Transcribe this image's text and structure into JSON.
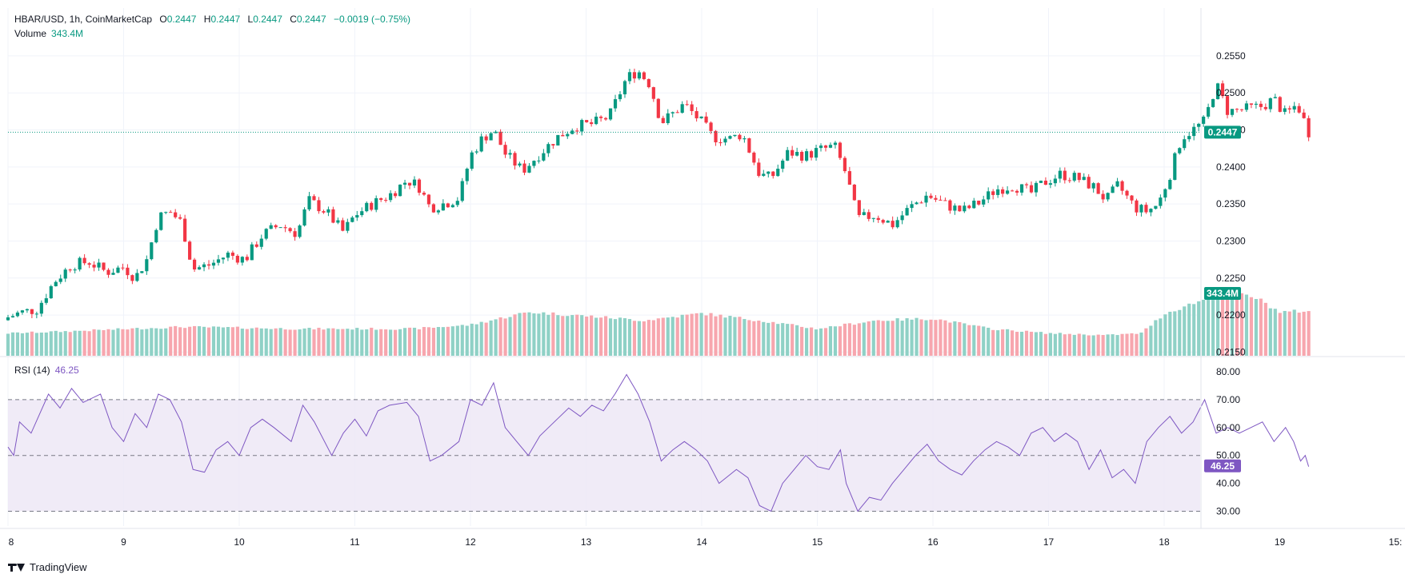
{
  "header": {
    "symbol": "HBAR/USD, 1h, CoinMarketCap",
    "open_label": "O",
    "open": "0.2447",
    "high_label": "H",
    "high": "0.2447",
    "low_label": "L",
    "low": "0.2447",
    "close_label": "C",
    "close": "0.2447",
    "change": "−0.0019 (−0.75%)",
    "volume_label": "Volume",
    "volume": "343.4M"
  },
  "rsi": {
    "label": "RSI (14)",
    "value": "46.25"
  },
  "brand": {
    "name": "TradingView"
  },
  "colors": {
    "up": "#089981",
    "down": "#f23645",
    "up_vol": "#8fd1c6",
    "down_vol": "#f7a6ae",
    "rsi_line": "#7e57c2",
    "rsi_band": "#ede7f6",
    "price_badge": "#089981",
    "rsi_badge": "#7e57c2"
  },
  "chart_data": [
    {
      "type": "candlestick",
      "title": "HBAR/USD, 1h, CoinMarketCap",
      "x_tick_labels": [
        "8",
        "9",
        "10",
        "11",
        "12",
        "13",
        "14",
        "15",
        "16",
        "17",
        "18",
        "19",
        "15:"
      ],
      "y_tick_labels": [
        "0.2550",
        "0.2500",
        "0.2450",
        "0.2400",
        "0.2350",
        "0.2300",
        "0.2250",
        "0.2200",
        "0.2150"
      ],
      "ylim": [
        0.2145,
        0.2578
      ],
      "current_price": 0.2447,
      "current_price_label": "0.2447",
      "volume_badge": "343.4M",
      "close_path": [
        [
          8.0,
          0.2197
        ],
        [
          8.1,
          0.2203
        ],
        [
          8.25,
          0.2208
        ],
        [
          8.4,
          0.2245
        ],
        [
          8.55,
          0.2268
        ],
        [
          8.7,
          0.2272
        ],
        [
          8.85,
          0.2258
        ],
        [
          9.0,
          0.2265
        ],
        [
          9.1,
          0.225
        ],
        [
          9.2,
          0.2275
        ],
        [
          9.3,
          0.2332
        ],
        [
          9.4,
          0.234
        ],
        [
          9.5,
          0.2325
        ],
        [
          9.6,
          0.2262
        ],
        [
          9.75,
          0.2268
        ],
        [
          9.9,
          0.2282
        ],
        [
          10.05,
          0.2275
        ],
        [
          10.2,
          0.2308
        ],
        [
          10.35,
          0.2322
        ],
        [
          10.5,
          0.231
        ],
        [
          10.6,
          0.2355
        ],
        [
          10.75,
          0.234
        ],
        [
          10.9,
          0.2312
        ],
        [
          11.0,
          0.2335
        ],
        [
          11.15,
          0.235
        ],
        [
          11.3,
          0.2362
        ],
        [
          11.45,
          0.2382
        ],
        [
          11.55,
          0.2375
        ],
        [
          11.65,
          0.2345
        ],
        [
          11.8,
          0.2352
        ],
        [
          11.9,
          0.2358
        ],
        [
          12.0,
          0.2415
        ],
        [
          12.1,
          0.2438
        ],
        [
          12.2,
          0.245
        ],
        [
          12.3,
          0.2418
        ],
        [
          12.45,
          0.2395
        ],
        [
          12.6,
          0.2418
        ],
        [
          12.75,
          0.244
        ],
        [
          12.9,
          0.2455
        ],
        [
          13.05,
          0.2458
        ],
        [
          13.2,
          0.2468
        ],
        [
          13.35,
          0.252
        ],
        [
          13.45,
          0.253
        ],
        [
          13.55,
          0.2512
        ],
        [
          13.65,
          0.246
        ],
        [
          13.75,
          0.2472
        ],
        [
          13.85,
          0.2485
        ],
        [
          14.0,
          0.246
        ],
        [
          14.1,
          0.244
        ],
        [
          14.25,
          0.2438
        ],
        [
          14.35,
          0.2445
        ],
        [
          14.5,
          0.239
        ],
        [
          14.6,
          0.2385
        ],
        [
          14.75,
          0.242
        ],
        [
          14.9,
          0.2415
        ],
        [
          15.0,
          0.2422
        ],
        [
          15.15,
          0.2428
        ],
        [
          15.25,
          0.239
        ],
        [
          15.35,
          0.233
        ],
        [
          15.5,
          0.2335
        ],
        [
          15.65,
          0.2322
        ],
        [
          15.8,
          0.2345
        ],
        [
          15.95,
          0.2362
        ],
        [
          16.1,
          0.235
        ],
        [
          16.25,
          0.234
        ],
        [
          16.4,
          0.2352
        ],
        [
          16.55,
          0.237
        ],
        [
          16.7,
          0.2375
        ],
        [
          16.85,
          0.2365
        ],
        [
          16.95,
          0.2378
        ],
        [
          17.1,
          0.239
        ],
        [
          17.25,
          0.2385
        ],
        [
          17.4,
          0.2372
        ],
        [
          17.5,
          0.2355
        ],
        [
          17.6,
          0.2375
        ],
        [
          17.75,
          0.2345
        ],
        [
          17.85,
          0.234
        ],
        [
          17.95,
          0.235
        ],
        [
          18.05,
          0.239
        ],
        [
          18.15,
          0.244
        ],
        [
          18.25,
          0.245
        ],
        [
          18.35,
          0.2462
        ],
        [
          18.45,
          0.2512
        ],
        [
          18.55,
          0.2475
        ],
        [
          18.7,
          0.2478
        ],
        [
          18.85,
          0.2482
        ],
        [
          18.95,
          0.2492
        ],
        [
          19.05,
          0.247
        ],
        [
          19.15,
          0.2485
        ],
        [
          19.25,
          0.2447
        ]
      ],
      "volume_profile": [
        [
          8.0,
          0.35
        ],
        [
          8.5,
          0.38
        ],
        [
          9.5,
          0.45
        ],
        [
          10.5,
          0.42
        ],
        [
          11.5,
          0.42
        ],
        [
          12.0,
          0.48
        ],
        [
          12.5,
          0.68
        ],
        [
          13.0,
          0.62
        ],
        [
          13.5,
          0.55
        ],
        [
          14.0,
          0.66
        ],
        [
          14.5,
          0.55
        ],
        [
          15.0,
          0.42
        ],
        [
          15.5,
          0.55
        ],
        [
          16.0,
          0.58
        ],
        [
          16.5,
          0.42
        ],
        [
          17.0,
          0.35
        ],
        [
          17.5,
          0.32
        ],
        [
          17.8,
          0.35
        ],
        [
          18.0,
          0.65
        ],
        [
          18.3,
          0.85
        ],
        [
          18.6,
          0.98
        ],
        [
          18.8,
          0.9
        ],
        [
          19.0,
          0.68
        ],
        [
          19.25,
          0.7
        ]
      ]
    },
    {
      "type": "line",
      "title": "RSI (14)",
      "series_value_label": "46.25",
      "y_tick_labels": [
        "80.00",
        "70.00",
        "60.00",
        "50.00",
        "40.00",
        "30.00"
      ],
      "ylim": [
        27,
        82
      ],
      "band": [
        30,
        70
      ],
      "midline": 50,
      "current_value": 46.25,
      "current_value_label": "46.25",
      "points": [
        [
          8.0,
          53
        ],
        [
          8.05,
          50
        ],
        [
          8.1,
          62
        ],
        [
          8.2,
          58
        ],
        [
          8.35,
          72
        ],
        [
          8.45,
          67
        ],
        [
          8.55,
          74
        ],
        [
          8.65,
          69
        ],
        [
          8.8,
          72
        ],
        [
          8.9,
          60
        ],
        [
          9.0,
          55
        ],
        [
          9.1,
          65
        ],
        [
          9.2,
          60
        ],
        [
          9.3,
          72
        ],
        [
          9.4,
          70
        ],
        [
          9.5,
          62
        ],
        [
          9.6,
          45
        ],
        [
          9.7,
          44
        ],
        [
          9.8,
          52
        ],
        [
          9.9,
          55
        ],
        [
          10.0,
          50
        ],
        [
          10.1,
          60
        ],
        [
          10.2,
          63
        ],
        [
          10.3,
          60
        ],
        [
          10.45,
          55
        ],
        [
          10.55,
          68
        ],
        [
          10.65,
          62
        ],
        [
          10.8,
          50
        ],
        [
          10.9,
          58
        ],
        [
          11.0,
          63
        ],
        [
          11.1,
          57
        ],
        [
          11.2,
          66
        ],
        [
          11.3,
          68
        ],
        [
          11.45,
          69
        ],
        [
          11.55,
          64
        ],
        [
          11.65,
          48
        ],
        [
          11.75,
          50
        ],
        [
          11.9,
          55
        ],
        [
          12.0,
          70
        ],
        [
          12.1,
          68
        ],
        [
          12.2,
          76
        ],
        [
          12.3,
          60
        ],
        [
          12.4,
          55
        ],
        [
          12.5,
          50
        ],
        [
          12.6,
          57
        ],
        [
          12.7,
          61
        ],
        [
          12.85,
          67
        ],
        [
          12.95,
          64
        ],
        [
          13.05,
          68
        ],
        [
          13.15,
          66
        ],
        [
          13.25,
          72
        ],
        [
          13.35,
          79
        ],
        [
          13.45,
          72
        ],
        [
          13.55,
          62
        ],
        [
          13.65,
          48
        ],
        [
          13.75,
          52
        ],
        [
          13.85,
          55
        ],
        [
          13.95,
          52
        ],
        [
          14.05,
          48
        ],
        [
          14.15,
          40
        ],
        [
          14.3,
          45
        ],
        [
          14.4,
          42
        ],
        [
          14.5,
          32
        ],
        [
          14.6,
          30
        ],
        [
          14.7,
          40
        ],
        [
          14.8,
          45
        ],
        [
          14.9,
          50
        ],
        [
          15.0,
          46
        ],
        [
          15.1,
          45
        ],
        [
          15.2,
          52
        ],
        [
          15.25,
          40
        ],
        [
          15.35,
          30
        ],
        [
          15.45,
          35
        ],
        [
          15.55,
          34
        ],
        [
          15.65,
          40
        ],
        [
          15.75,
          45
        ],
        [
          15.85,
          50
        ],
        [
          15.95,
          54
        ],
        [
          16.05,
          48
        ],
        [
          16.15,
          45
        ],
        [
          16.25,
          43
        ],
        [
          16.35,
          48
        ],
        [
          16.45,
          52
        ],
        [
          16.55,
          55
        ],
        [
          16.65,
          53
        ],
        [
          16.75,
          50
        ],
        [
          16.85,
          58
        ],
        [
          16.95,
          60
        ],
        [
          17.05,
          55
        ],
        [
          17.15,
          58
        ],
        [
          17.25,
          55
        ],
        [
          17.35,
          45
        ],
        [
          17.45,
          52
        ],
        [
          17.55,
          42
        ],
        [
          17.65,
          45
        ],
        [
          17.75,
          40
        ],
        [
          17.85,
          55
        ],
        [
          17.95,
          60
        ],
        [
          18.05,
          64
        ],
        [
          18.15,
          58
        ],
        [
          18.25,
          62
        ],
        [
          18.35,
          70
        ],
        [
          18.45,
          58
        ],
        [
          18.55,
          60
        ],
        [
          18.65,
          58
        ],
        [
          18.75,
          60
        ],
        [
          18.85,
          62
        ],
        [
          18.95,
          55
        ],
        [
          19.05,
          60
        ],
        [
          19.12,
          55
        ],
        [
          19.18,
          48
        ],
        [
          19.22,
          50
        ],
        [
          19.25,
          46
        ]
      ]
    }
  ]
}
